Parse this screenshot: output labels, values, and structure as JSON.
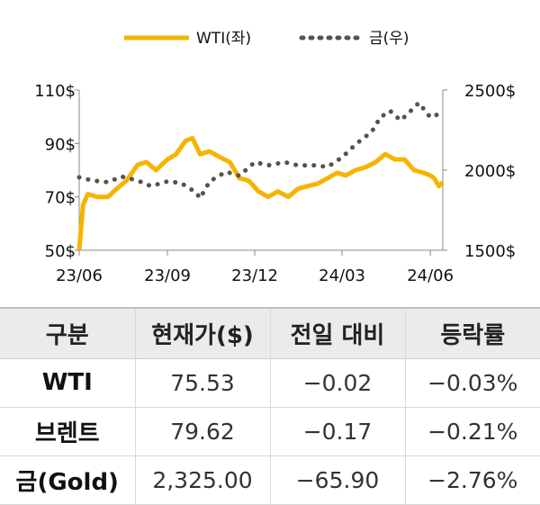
{
  "chart_data": {
    "type": "line",
    "legend": [
      "WTI(좌)",
      "금(우)"
    ],
    "legend_position": "top",
    "x_ticks": [
      "23/06",
      "23/09",
      "23/12",
      "24/03",
      "24/06"
    ],
    "y_left_ticks": [
      "50$",
      "70$",
      "90$",
      "110$"
    ],
    "y_right_ticks": [
      "1500$",
      "2000$",
      "2500$"
    ],
    "y_left_range": [
      50,
      110
    ],
    "y_right_range": [
      1500,
      2500
    ],
    "grid": false,
    "series": [
      {
        "name": "WTI(좌)",
        "axis": "left",
        "style": "solid",
        "color": "#F5B400",
        "x": [
          "2023-06-01",
          "2023-06-05",
          "2023-06-10",
          "2023-06-20",
          "2023-07-01",
          "2023-07-10",
          "2023-07-20",
          "2023-08-01",
          "2023-08-10",
          "2023-08-20",
          "2023-09-01",
          "2023-09-10",
          "2023-09-20",
          "2023-09-27",
          "2023-10-05",
          "2023-10-15",
          "2023-10-25",
          "2023-11-05",
          "2023-11-15",
          "2023-11-25",
          "2023-12-05",
          "2023-12-15",
          "2023-12-25",
          "2024-01-05",
          "2024-01-15",
          "2024-01-25",
          "2024-02-05",
          "2024-02-15",
          "2024-02-25",
          "2024-03-05",
          "2024-03-15",
          "2024-03-25",
          "2024-04-05",
          "2024-04-15",
          "2024-04-25",
          "2024-05-05",
          "2024-05-15",
          "2024-05-25",
          "2024-06-01",
          "2024-06-05",
          "2024-06-10",
          "2024-06-14"
        ],
        "values": [
          50,
          67,
          71,
          70,
          70,
          73,
          76,
          82,
          83,
          80,
          84,
          86,
          91,
          92,
          86,
          87,
          85,
          83,
          77,
          76,
          72,
          70,
          72,
          70,
          73,
          74,
          75,
          77,
          79,
          78,
          80,
          81,
          83,
          86,
          84,
          84,
          80,
          79,
          78,
          77,
          74,
          75.5
        ]
      },
      {
        "name": "금(우)",
        "axis": "right",
        "style": "dotted",
        "color": "#5B5147",
        "x": [
          "2023-06-01",
          "2023-06-15",
          "2023-07-01",
          "2023-07-15",
          "2023-08-01",
          "2023-08-15",
          "2023-09-01",
          "2023-09-15",
          "2023-10-01",
          "2023-10-05",
          "2023-10-15",
          "2023-11-01",
          "2023-11-15",
          "2023-12-01",
          "2023-12-15",
          "2024-01-01",
          "2024-01-15",
          "2024-02-01",
          "2024-02-15",
          "2024-03-01",
          "2024-03-15",
          "2024-04-01",
          "2024-04-10",
          "2024-04-20",
          "2024-05-01",
          "2024-05-10",
          "2024-05-20",
          "2024-06-01",
          "2024-06-10",
          "2024-06-14"
        ],
        "values": [
          1955,
          1935,
          1925,
          1960,
          1935,
          1900,
          1930,
          1920,
          1860,
          1825,
          1930,
          1990,
          1965,
          2050,
          2030,
          2050,
          2030,
          2030,
          2020,
          2080,
          2160,
          2240,
          2330,
          2370,
          2310,
          2360,
          2420,
          2330,
          2350,
          2320
        ]
      }
    ]
  },
  "table": {
    "headers": [
      "구분",
      "현재가($)",
      "전일 대비",
      "등락률"
    ],
    "rows": [
      [
        "WTI",
        "75.53",
        "−0.02",
        "−0.03%"
      ],
      [
        "브렌트",
        "79.62",
        "−0.17",
        "−0.21%"
      ],
      [
        "금(Gold)",
        "2,325.00",
        "−65.90",
        "−2.76%"
      ]
    ]
  }
}
